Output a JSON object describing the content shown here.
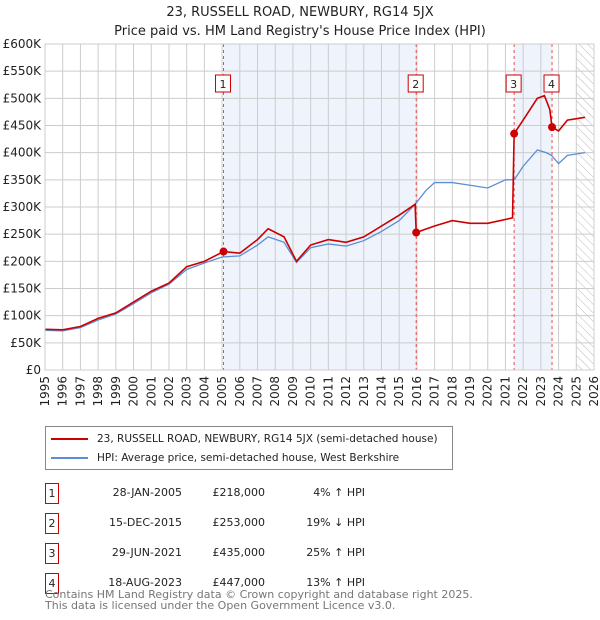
{
  "chart_data": {
    "type": "line",
    "title": "23, RUSSELL ROAD, NEWBURY, RG14 5JX",
    "subtitle": "Price paid vs. HM Land Registry's House Price Index (HPI)",
    "xlim": [
      1995,
      2026
    ],
    "ylim": [
      0,
      600000
    ],
    "x_ticks": [
      "1995",
      "1996",
      "1997",
      "1998",
      "1999",
      "2000",
      "2001",
      "2002",
      "2003",
      "2004",
      "2005",
      "2006",
      "2007",
      "2008",
      "2009",
      "2010",
      "2011",
      "2012",
      "2013",
      "2014",
      "2015",
      "2016",
      "2017",
      "2018",
      "2019",
      "2020",
      "2021",
      "2022",
      "2023",
      "2024",
      "2025",
      "2026"
    ],
    "y_ticks": [
      "£0",
      "£50K",
      "£100K",
      "£150K",
      "£200K",
      "£250K",
      "£300K",
      "£350K",
      "£400K",
      "£450K",
      "£500K",
      "£550K",
      "£600K"
    ],
    "grid": true,
    "series": [
      {
        "name": "23, RUSSELL ROAD, NEWBURY, RG14 5JX (semi-detached house)",
        "color": "#cc0000",
        "x": [
          1995,
          1996,
          1997,
          1998,
          1999,
          2000,
          2001,
          2002,
          2003,
          2004,
          2005.08,
          2006,
          2007,
          2007.6,
          2008.5,
          2009.2,
          2010,
          2011,
          2012,
          2013,
          2014,
          2015,
          2015.9,
          2015.96,
          2017,
          2018,
          2019,
          2020,
          2021.4,
          2021.49,
          2022,
          2022.8,
          2023.2,
          2023.5,
          2023.63,
          2024,
          2024.5,
          2025.5
        ],
        "y": [
          75000,
          74000,
          80000,
          95000,
          105000,
          125000,
          145000,
          160000,
          190000,
          200000,
          218000,
          215000,
          240000,
          260000,
          245000,
          200000,
          230000,
          240000,
          235000,
          245000,
          265000,
          285000,
          305000,
          253000,
          265000,
          275000,
          270000,
          270000,
          280000,
          435000,
          460000,
          500000,
          505000,
          480000,
          447000,
          440000,
          460000,
          465000
        ]
      },
      {
        "name": "HPI: Average price, semi-detached house, West Berkshire",
        "color": "#5b8ed6",
        "x": [
          1995,
          1996,
          1997,
          1998,
          1999,
          2000,
          2001,
          2002,
          2003,
          2004,
          2005,
          2006,
          2007,
          2007.6,
          2008.5,
          2009.2,
          2010,
          2011,
          2012,
          2013,
          2014,
          2015,
          2015.9,
          2016.5,
          2017,
          2018,
          2019,
          2020,
          2021,
          2021.5,
          2022,
          2022.8,
          2023.3,
          2023.6,
          2024,
          2024.5,
          2025.5
        ],
        "y": [
          73000,
          72000,
          78000,
          92000,
          103000,
          122000,
          142000,
          158000,
          185000,
          197000,
          208000,
          210000,
          230000,
          245000,
          235000,
          198000,
          225000,
          232000,
          228000,
          238000,
          255000,
          275000,
          305000,
          330000,
          345000,
          345000,
          340000,
          335000,
          350000,
          350000,
          375000,
          405000,
          400000,
          395000,
          380000,
          395000,
          400000
        ]
      }
    ],
    "sales": [
      {
        "n": "1",
        "x": 2005.08,
        "y": 218000,
        "date": "28-JAN-2005",
        "price": "£218,000",
        "hpi": "4% ↑ HPI"
      },
      {
        "n": "2",
        "x": 2015.96,
        "y": 253000,
        "date": "15-DEC-2015",
        "price": "£253,000",
        "hpi": "19% ↓ HPI"
      },
      {
        "n": "3",
        "x": 2021.49,
        "y": 435000,
        "date": "29-JUN-2021",
        "price": "£435,000",
        "hpi": "25% ↑ HPI"
      },
      {
        "n": "4",
        "x": 2023.63,
        "y": 447000,
        "date": "18-AUG-2023",
        "price": "£447,000",
        "hpi": "13% ↑ HPI"
      }
    ],
    "hatched_from": 2025.0
  },
  "footer": {
    "line1": "Contains HM Land Registry data © Crown copyright and database right 2025.",
    "line2": "This data is licensed under the Open Government Licence v3.0."
  }
}
